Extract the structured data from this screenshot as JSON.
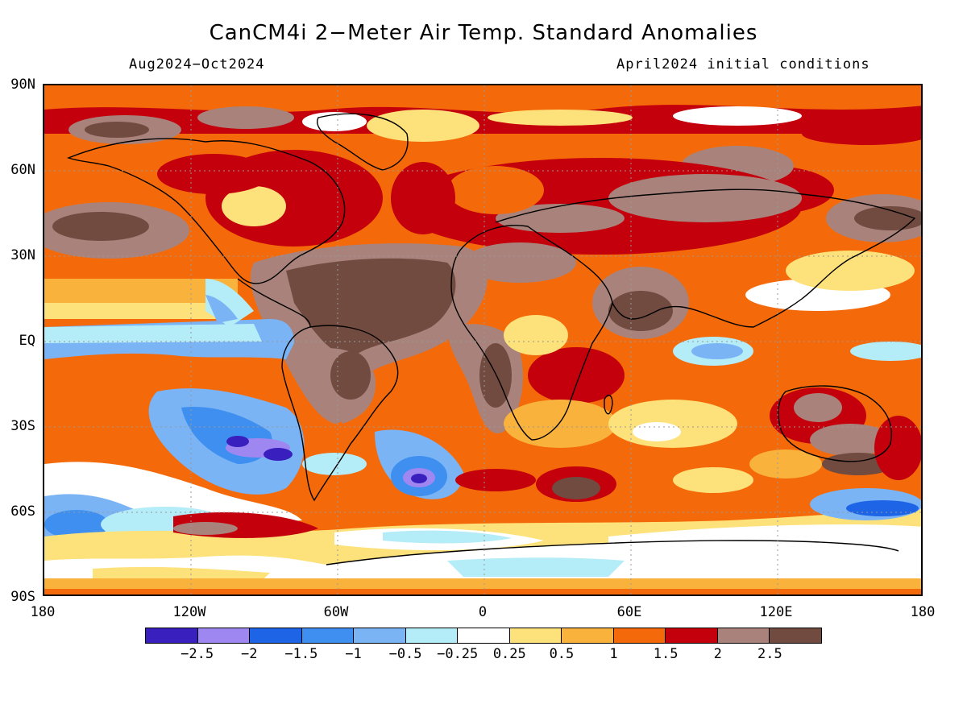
{
  "title": "CanCM4i 2−Meter Air Temp. Standard Anomalies",
  "period": "Aug2024−Oct2024",
  "initial_conditions": "April2024 initial conditions",
  "map": {
    "y_axis_labels": [
      "90N",
      "60N",
      "30N",
      "EQ",
      "30S",
      "60S",
      "90S"
    ],
    "x_axis_labels": [
      "180",
      "120W",
      "60W",
      "0",
      "60E",
      "120E",
      "180"
    ]
  },
  "colorbar": {
    "colors": [
      "#3a1fbf",
      "#9f87f2",
      "#1e64e6",
      "#3f8ff0",
      "#7ab4f5",
      "#b4ecf8",
      "#ffffff",
      "#fde17a",
      "#f9b33c",
      "#f46a0a",
      "#c4000c",
      "#a9837b",
      "#714a40"
    ],
    "labels": [
      "−2.5",
      "−2",
      "−1.5",
      "−1",
      "−0.5",
      "−0.25",
      "0.25",
      "0.5",
      "1",
      "1.5",
      "2",
      "2.5"
    ]
  }
}
